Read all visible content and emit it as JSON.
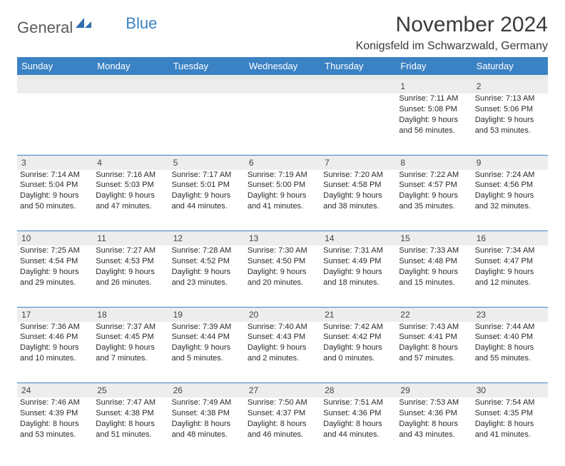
{
  "logo": {
    "part1": "General",
    "part2": "Blue"
  },
  "title": "November 2024",
  "location": "Konigsfeld im Schwarzwald, Germany",
  "colors": {
    "header_bg": "#3b82c4",
    "header_text": "#ffffff",
    "daynum_bg": "#ededed",
    "border": "#3b82c4",
    "text": "#2a2a2a",
    "logo_gray": "#5a5a5a",
    "logo_blue": "#3b82c4",
    "background": "#ffffff"
  },
  "day_headers": [
    "Sunday",
    "Monday",
    "Tuesday",
    "Wednesday",
    "Thursday",
    "Friday",
    "Saturday"
  ],
  "weeks": [
    {
      "nums": [
        "",
        "",
        "",
        "",
        "",
        "1",
        "2"
      ],
      "cells": [
        null,
        null,
        null,
        null,
        null,
        {
          "sunrise": "Sunrise: 7:11 AM",
          "sunset": "Sunset: 5:08 PM",
          "dl1": "Daylight: 9 hours",
          "dl2": "and 56 minutes."
        },
        {
          "sunrise": "Sunrise: 7:13 AM",
          "sunset": "Sunset: 5:06 PM",
          "dl1": "Daylight: 9 hours",
          "dl2": "and 53 minutes."
        }
      ]
    },
    {
      "nums": [
        "3",
        "4",
        "5",
        "6",
        "7",
        "8",
        "9"
      ],
      "cells": [
        {
          "sunrise": "Sunrise: 7:14 AM",
          "sunset": "Sunset: 5:04 PM",
          "dl1": "Daylight: 9 hours",
          "dl2": "and 50 minutes."
        },
        {
          "sunrise": "Sunrise: 7:16 AM",
          "sunset": "Sunset: 5:03 PM",
          "dl1": "Daylight: 9 hours",
          "dl2": "and 47 minutes."
        },
        {
          "sunrise": "Sunrise: 7:17 AM",
          "sunset": "Sunset: 5:01 PM",
          "dl1": "Daylight: 9 hours",
          "dl2": "and 44 minutes."
        },
        {
          "sunrise": "Sunrise: 7:19 AM",
          "sunset": "Sunset: 5:00 PM",
          "dl1": "Daylight: 9 hours",
          "dl2": "and 41 minutes."
        },
        {
          "sunrise": "Sunrise: 7:20 AM",
          "sunset": "Sunset: 4:58 PM",
          "dl1": "Daylight: 9 hours",
          "dl2": "and 38 minutes."
        },
        {
          "sunrise": "Sunrise: 7:22 AM",
          "sunset": "Sunset: 4:57 PM",
          "dl1": "Daylight: 9 hours",
          "dl2": "and 35 minutes."
        },
        {
          "sunrise": "Sunrise: 7:24 AM",
          "sunset": "Sunset: 4:56 PM",
          "dl1": "Daylight: 9 hours",
          "dl2": "and 32 minutes."
        }
      ]
    },
    {
      "nums": [
        "10",
        "11",
        "12",
        "13",
        "14",
        "15",
        "16"
      ],
      "cells": [
        {
          "sunrise": "Sunrise: 7:25 AM",
          "sunset": "Sunset: 4:54 PM",
          "dl1": "Daylight: 9 hours",
          "dl2": "and 29 minutes."
        },
        {
          "sunrise": "Sunrise: 7:27 AM",
          "sunset": "Sunset: 4:53 PM",
          "dl1": "Daylight: 9 hours",
          "dl2": "and 26 minutes."
        },
        {
          "sunrise": "Sunrise: 7:28 AM",
          "sunset": "Sunset: 4:52 PM",
          "dl1": "Daylight: 9 hours",
          "dl2": "and 23 minutes."
        },
        {
          "sunrise": "Sunrise: 7:30 AM",
          "sunset": "Sunset: 4:50 PM",
          "dl1": "Daylight: 9 hours",
          "dl2": "and 20 minutes."
        },
        {
          "sunrise": "Sunrise: 7:31 AM",
          "sunset": "Sunset: 4:49 PM",
          "dl1": "Daylight: 9 hours",
          "dl2": "and 18 minutes."
        },
        {
          "sunrise": "Sunrise: 7:33 AM",
          "sunset": "Sunset: 4:48 PM",
          "dl1": "Daylight: 9 hours",
          "dl2": "and 15 minutes."
        },
        {
          "sunrise": "Sunrise: 7:34 AM",
          "sunset": "Sunset: 4:47 PM",
          "dl1": "Daylight: 9 hours",
          "dl2": "and 12 minutes."
        }
      ]
    },
    {
      "nums": [
        "17",
        "18",
        "19",
        "20",
        "21",
        "22",
        "23"
      ],
      "cells": [
        {
          "sunrise": "Sunrise: 7:36 AM",
          "sunset": "Sunset: 4:46 PM",
          "dl1": "Daylight: 9 hours",
          "dl2": "and 10 minutes."
        },
        {
          "sunrise": "Sunrise: 7:37 AM",
          "sunset": "Sunset: 4:45 PM",
          "dl1": "Daylight: 9 hours",
          "dl2": "and 7 minutes."
        },
        {
          "sunrise": "Sunrise: 7:39 AM",
          "sunset": "Sunset: 4:44 PM",
          "dl1": "Daylight: 9 hours",
          "dl2": "and 5 minutes."
        },
        {
          "sunrise": "Sunrise: 7:40 AM",
          "sunset": "Sunset: 4:43 PM",
          "dl1": "Daylight: 9 hours",
          "dl2": "and 2 minutes."
        },
        {
          "sunrise": "Sunrise: 7:42 AM",
          "sunset": "Sunset: 4:42 PM",
          "dl1": "Daylight: 9 hours",
          "dl2": "and 0 minutes."
        },
        {
          "sunrise": "Sunrise: 7:43 AM",
          "sunset": "Sunset: 4:41 PM",
          "dl1": "Daylight: 8 hours",
          "dl2": "and 57 minutes."
        },
        {
          "sunrise": "Sunrise: 7:44 AM",
          "sunset": "Sunset: 4:40 PM",
          "dl1": "Daylight: 8 hours",
          "dl2": "and 55 minutes."
        }
      ]
    },
    {
      "nums": [
        "24",
        "25",
        "26",
        "27",
        "28",
        "29",
        "30"
      ],
      "cells": [
        {
          "sunrise": "Sunrise: 7:46 AM",
          "sunset": "Sunset: 4:39 PM",
          "dl1": "Daylight: 8 hours",
          "dl2": "and 53 minutes."
        },
        {
          "sunrise": "Sunrise: 7:47 AM",
          "sunset": "Sunset: 4:38 PM",
          "dl1": "Daylight: 8 hours",
          "dl2": "and 51 minutes."
        },
        {
          "sunrise": "Sunrise: 7:49 AM",
          "sunset": "Sunset: 4:38 PM",
          "dl1": "Daylight: 8 hours",
          "dl2": "and 48 minutes."
        },
        {
          "sunrise": "Sunrise: 7:50 AM",
          "sunset": "Sunset: 4:37 PM",
          "dl1": "Daylight: 8 hours",
          "dl2": "and 46 minutes."
        },
        {
          "sunrise": "Sunrise: 7:51 AM",
          "sunset": "Sunset: 4:36 PM",
          "dl1": "Daylight: 8 hours",
          "dl2": "and 44 minutes."
        },
        {
          "sunrise": "Sunrise: 7:53 AM",
          "sunset": "Sunset: 4:36 PM",
          "dl1": "Daylight: 8 hours",
          "dl2": "and 43 minutes."
        },
        {
          "sunrise": "Sunrise: 7:54 AM",
          "sunset": "Sunset: 4:35 PM",
          "dl1": "Daylight: 8 hours",
          "dl2": "and 41 minutes."
        }
      ]
    }
  ]
}
